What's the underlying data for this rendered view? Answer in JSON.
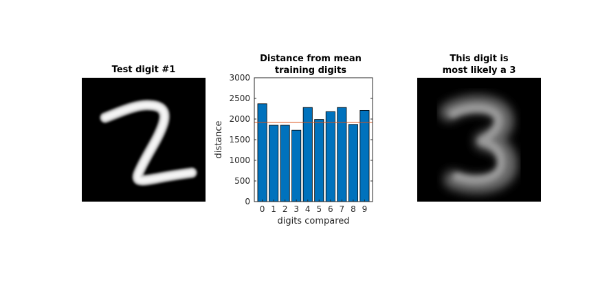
{
  "left_panel": {
    "title": "Test digit #1",
    "digit": "2"
  },
  "right_panel": {
    "title": "This digit is\nmost likely a 3",
    "digit": "3"
  },
  "colors": {
    "bar": "#0072BD",
    "bar_edge": "#000000",
    "mean_line": "#D95319",
    "axis": "#262626"
  },
  "chart_data": {
    "type": "bar",
    "title": "Distance from mean\ntraining digits",
    "xlabel": "digits compared",
    "ylabel": "distance",
    "categories": [
      "0",
      "1",
      "2",
      "3",
      "4",
      "5",
      "6",
      "7",
      "8",
      "9"
    ],
    "values": [
      2370,
      1850,
      1850,
      1730,
      2280,
      1990,
      2180,
      2280,
      1870,
      2210
    ],
    "reference_line": 1920,
    "ylim": [
      0,
      3000
    ],
    "yticks": [
      0,
      500,
      1000,
      1500,
      2000,
      2500,
      3000
    ],
    "grid": false
  }
}
